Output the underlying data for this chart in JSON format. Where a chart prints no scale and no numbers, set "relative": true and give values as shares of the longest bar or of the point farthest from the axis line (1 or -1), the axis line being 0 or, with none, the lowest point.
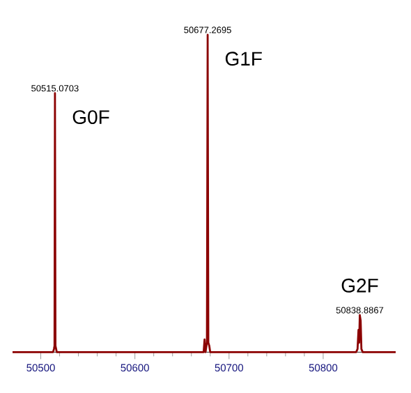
{
  "chart_data": {
    "type": "line",
    "relative": true,
    "color": "#8b0000",
    "x": [
      50470,
      50513,
      50514,
      50514.6,
      50515.0703,
      50515.6,
      50517,
      50673,
      50674,
      50675,
      50676.5,
      50677.2695,
      50678,
      50679,
      50680,
      50835,
      50836.5,
      50837.5,
      50838.2,
      50838.8867,
      50839.8,
      50840.6,
      50842,
      50877
    ],
    "values": [
      0,
      0,
      0.01,
      0.02,
      0.816,
      0.02,
      0,
      0,
      0.04,
      0,
      0.03,
      1,
      0.03,
      0.02,
      0,
      0,
      0.01,
      0.07,
      0.03,
      0.117,
      0.1,
      0.01,
      0,
      0
    ],
    "xlim": [
      50470,
      50877
    ],
    "xticks": [
      50500,
      50600,
      50700,
      50800
    ],
    "marker": "none",
    "line_style": "solid",
    "grid": false,
    "annotations": [
      {
        "text": "50515.0703",
        "x": 50515.0703,
        "y": 0.816
      },
      {
        "text": "G0F",
        "x": 50515.0703,
        "y": 0.816
      },
      {
        "text": "50677.2695",
        "x": 50677.2695,
        "y": 1
      },
      {
        "text": "G1F",
        "x": 50677.2695,
        "y": 1
      },
      {
        "text": "50838.8867",
        "x": 50838.8867,
        "y": 0.117
      },
      {
        "text": "G2F",
        "x": 50838.8867,
        "y": 0.117
      }
    ]
  }
}
